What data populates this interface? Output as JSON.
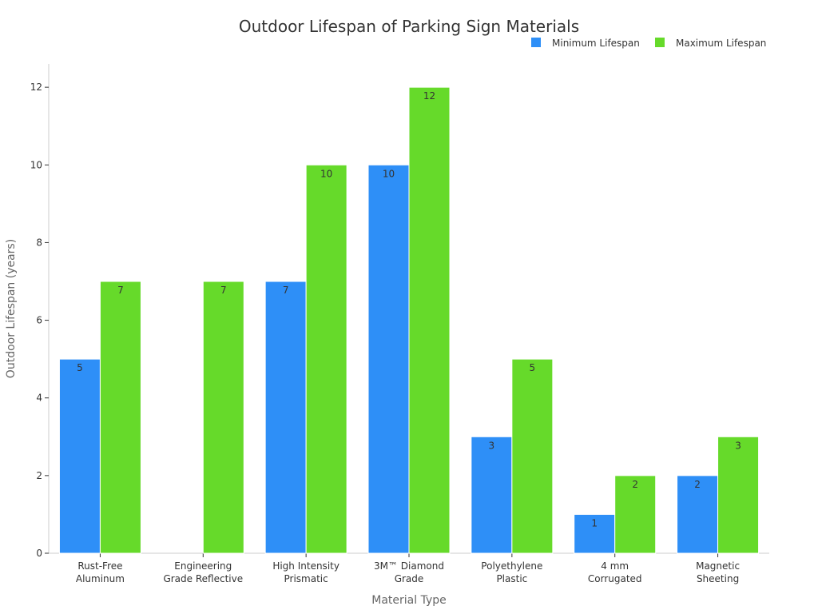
{
  "chart_data": {
    "type": "bar",
    "title": "Outdoor Lifespan of Parking Sign Materials",
    "xlabel": "Material Type",
    "ylabel": "Outdoor Lifespan (years)",
    "ylim": [
      0,
      12.6
    ],
    "yticks": [
      0,
      2,
      4,
      6,
      8,
      10,
      12
    ],
    "grid": false,
    "legend_position": "top-right",
    "categories": [
      [
        "Rust-Free",
        "Aluminum"
      ],
      [
        "Engineering",
        "Grade Reflective"
      ],
      [
        "High Intensity",
        "Prismatic"
      ],
      [
        "3M™ Diamond",
        "Grade"
      ],
      [
        "Polyethylene",
        "Plastic"
      ],
      [
        "4 mm",
        "Corrugated"
      ],
      [
        "Magnetic",
        "Sheeting"
      ]
    ],
    "series": [
      {
        "name": "Minimum Lifespan",
        "color": "#2e8ff7",
        "values": [
          5,
          null,
          7,
          10,
          3,
          1,
          2
        ]
      },
      {
        "name": "Maximum Lifespan",
        "color": "#66da2a",
        "values": [
          7,
          7,
          10,
          12,
          5,
          2,
          3
        ]
      }
    ]
  }
}
